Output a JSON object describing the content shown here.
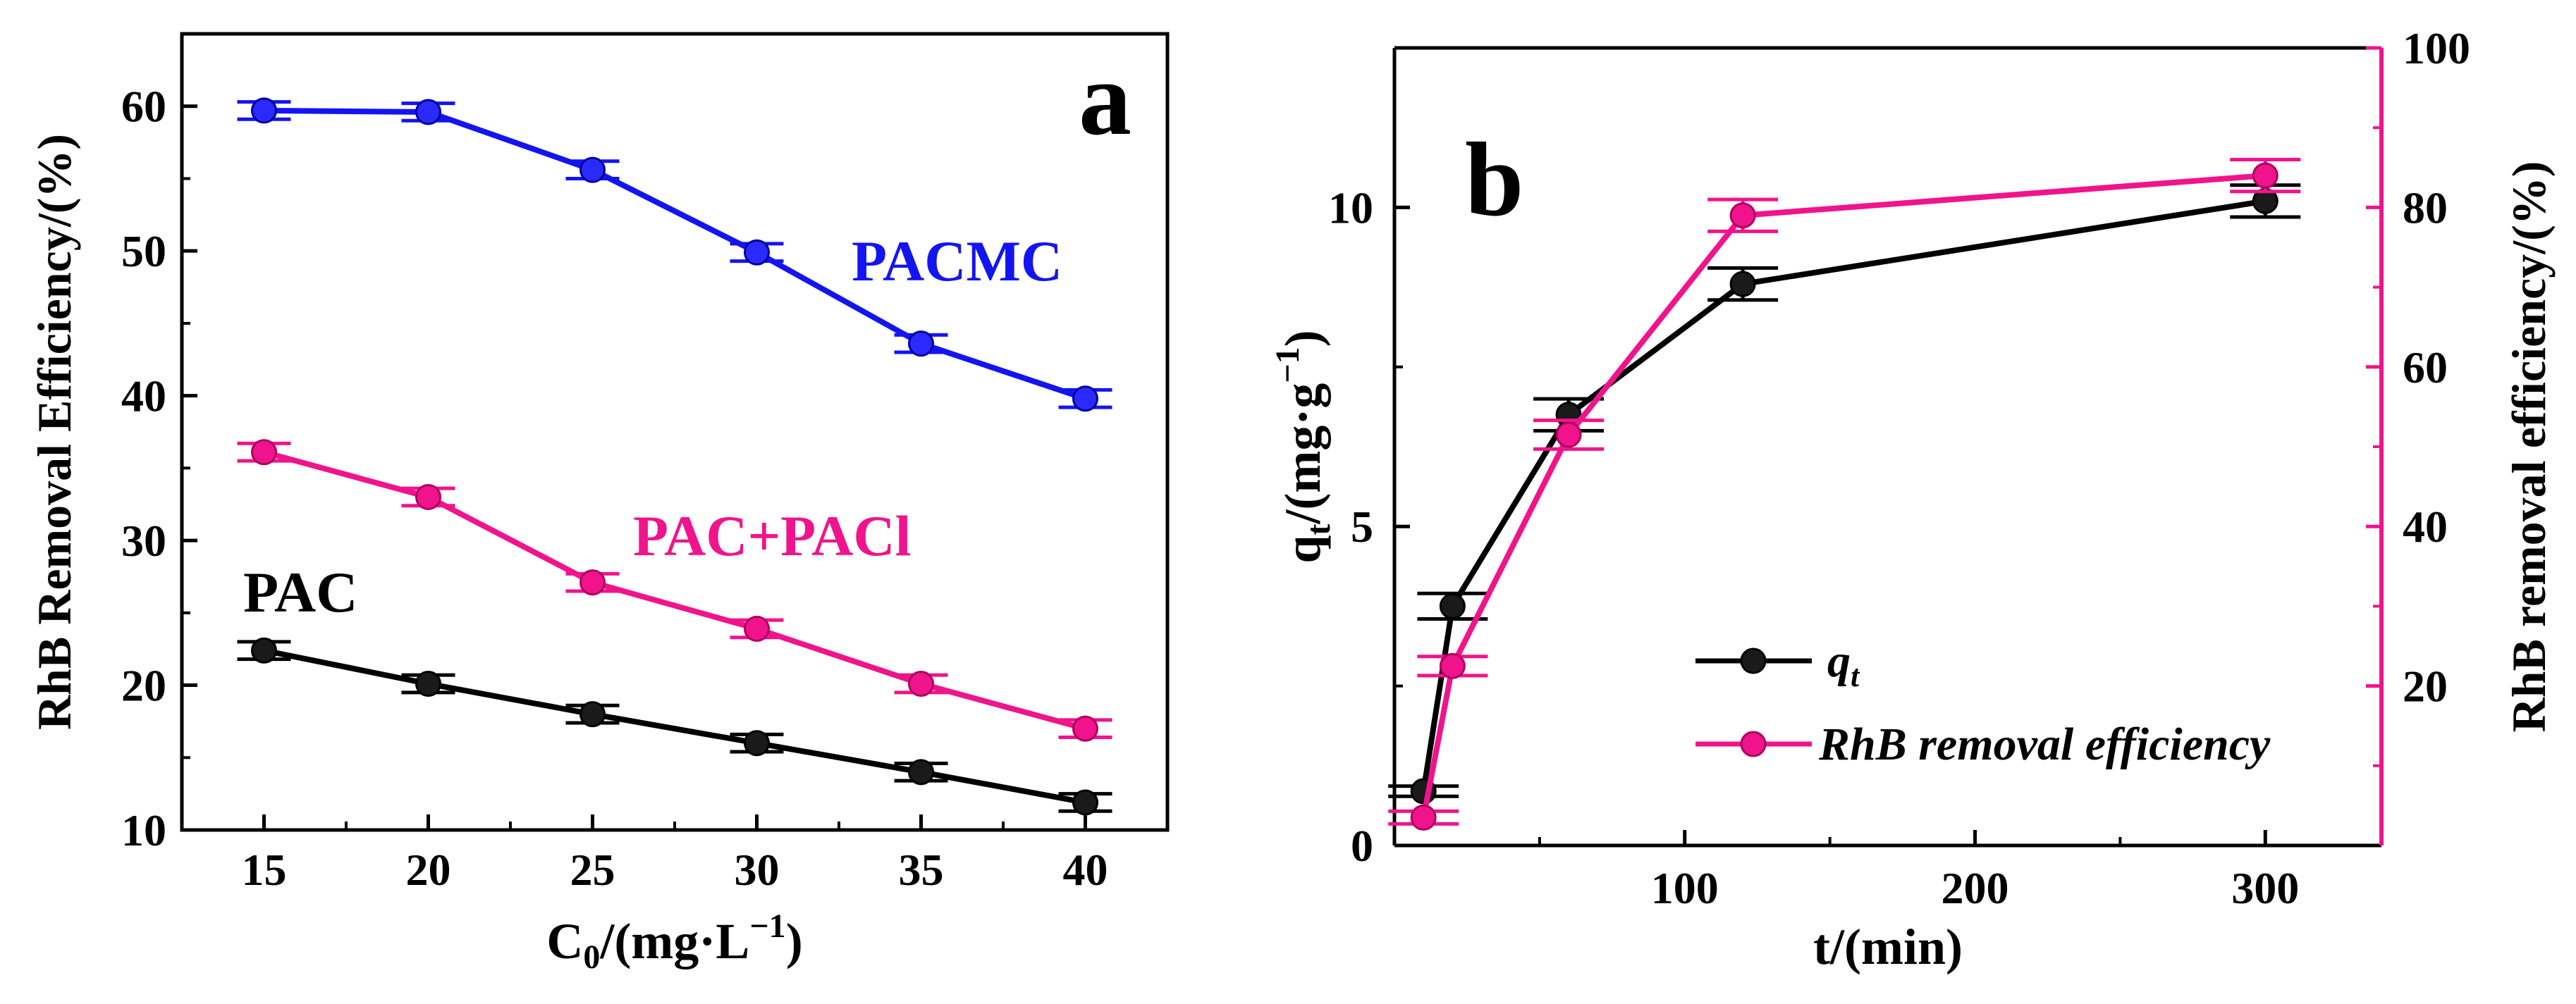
{
  "chart_data": [
    {
      "panel_label": "a",
      "type": "line",
      "xlabel": {
        "main": "C",
        "sub": "0",
        "tail": "/(mg·L",
        "sup": "−1",
        "end": ")"
      },
      "ylabel": "RhB Removal Efficiency/(%)",
      "xlim": [
        12.5,
        42.5
      ],
      "ylim": [
        10,
        65
      ],
      "x_ticks": [
        15,
        20,
        25,
        30,
        35,
        40
      ],
      "y_ticks": [
        10,
        20,
        30,
        40,
        50,
        60
      ],
      "x": [
        15,
        20,
        25,
        30,
        35,
        40
      ],
      "series": [
        {
          "name": "PACMC",
          "color": "#1414f0",
          "values": [
            59.7,
            59.6,
            55.6,
            49.9,
            43.6,
            39.8
          ],
          "error": [
            0.6,
            0.6,
            0.6,
            0.6,
            0.6,
            0.6
          ]
        },
        {
          "name": "PAC+PACl",
          "color": "#f0148c",
          "values": [
            36.1,
            33.0,
            27.1,
            23.9,
            20.1,
            17.0
          ],
          "error": [
            0.6,
            0.6,
            0.6,
            0.6,
            0.6,
            0.6
          ]
        },
        {
          "name": "PAC",
          "color": "#000000",
          "values": [
            22.4,
            20.1,
            18.0,
            16.0,
            14.0,
            11.9
          ],
          "error": [
            0.6,
            0.6,
            0.6,
            0.6,
            0.6,
            0.6
          ]
        }
      ],
      "annotations": [
        "PACMC",
        "PAC+PACl",
        "PAC"
      ]
    },
    {
      "panel_label": "b",
      "type": "line",
      "xlabel": "t/(min)",
      "ylabel_left": {
        "main": "q",
        "sub": "t",
        "tail": "/(mg·g",
        "sup": "−1",
        "end": ")"
      },
      "ylabel_right": "RhB removal efficiency/(%)",
      "xlim": [
        0,
        340
      ],
      "ylim_left": [
        0,
        12.5
      ],
      "ylim_right": [
        0,
        100
      ],
      "x_ticks": [
        100,
        200,
        300
      ],
      "y_ticks_left": [
        0,
        5,
        10
      ],
      "y_ticks_right": [
        20,
        40,
        60,
        80,
        100
      ],
      "series": [
        {
          "name": "q",
          "name_sub": "t",
          "axis": "left",
          "color": "#000000",
          "x": [
            10,
            20,
            60,
            120,
            300
          ],
          "values": [
            0.85,
            3.75,
            6.75,
            8.8,
            10.1
          ],
          "error": [
            0.08,
            0.2,
            0.25,
            0.25,
            0.25
          ]
        },
        {
          "name": "RhB removal efficiency",
          "axis": "right",
          "color": "#f0148c",
          "x": [
            10,
            20,
            60,
            120,
            300
          ],
          "values": [
            3.5,
            22.5,
            51.5,
            79.0,
            84.0
          ],
          "error": [
            0.8,
            1.2,
            1.8,
            2.0,
            2.0
          ]
        }
      ]
    }
  ]
}
